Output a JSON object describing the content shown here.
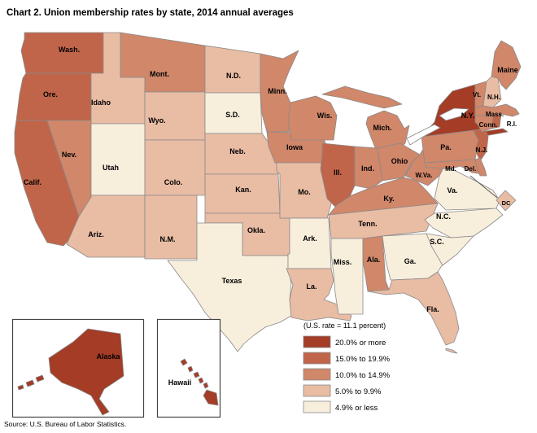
{
  "title": "Chart 2. Union membership rates by state, 2014 annual averages",
  "source": "Source: U.S. Bureau of Labor Statistics.",
  "legend": {
    "note": "(U.S. rate = 11.1 percent)",
    "classes": [
      {
        "label": "20.0% or more",
        "color": "#A43C26"
      },
      {
        "label": "15.0% to 19.9%",
        "color": "#C1654A"
      },
      {
        "label": "10.0% to 14.9%",
        "color": "#D0876A"
      },
      {
        "label": "5.0% to 9.9%",
        "color": "#E9BCA4"
      },
      {
        "label": "4.9% or less",
        "color": "#F8EEDC"
      }
    ],
    "border_color": "#8a8a8a"
  },
  "map": {
    "stroke_color": "#8a8a8a",
    "inset_border_color": "#444444",
    "states": [
      {
        "id": "wa",
        "label": "Wash.",
        "bucket": 1
      },
      {
        "id": "or",
        "label": "Ore.",
        "bucket": 1
      },
      {
        "id": "ca",
        "label": "Calif.",
        "bucket": 1
      },
      {
        "id": "id",
        "label": "Idaho",
        "bucket": 3
      },
      {
        "id": "nv",
        "label": "Nev.",
        "bucket": 2
      },
      {
        "id": "ut",
        "label": "Utah",
        "bucket": 4
      },
      {
        "id": "az",
        "label": "Ariz.",
        "bucket": 3
      },
      {
        "id": "mt",
        "label": "Mont.",
        "bucket": 2
      },
      {
        "id": "wy",
        "label": "Wyo.",
        "bucket": 3
      },
      {
        "id": "co",
        "label": "Colo.",
        "bucket": 3
      },
      {
        "id": "nm",
        "label": "N.M.",
        "bucket": 3
      },
      {
        "id": "nd",
        "label": "N.D.",
        "bucket": 3
      },
      {
        "id": "sd",
        "label": "S.D.",
        "bucket": 4
      },
      {
        "id": "ne",
        "label": "Neb.",
        "bucket": 3
      },
      {
        "id": "ks",
        "label": "Kan.",
        "bucket": 3
      },
      {
        "id": "ok",
        "label": "Okla.",
        "bucket": 3
      },
      {
        "id": "tx",
        "label": "Texas",
        "bucket": 4
      },
      {
        "id": "mn",
        "label": "Minn.",
        "bucket": 2
      },
      {
        "id": "ia",
        "label": "Iowa",
        "bucket": 2
      },
      {
        "id": "mo",
        "label": "Mo.",
        "bucket": 3
      },
      {
        "id": "ar",
        "label": "Ark.",
        "bucket": 4
      },
      {
        "id": "la",
        "label": "La.",
        "bucket": 3
      },
      {
        "id": "wi",
        "label": "Wis.",
        "bucket": 2
      },
      {
        "id": "il",
        "label": "Ill.",
        "bucket": 1
      },
      {
        "id": "mi",
        "label": "Mich.",
        "bucket": 2
      },
      {
        "id": "in",
        "label": "Ind.",
        "bucket": 2
      },
      {
        "id": "oh",
        "label": "Ohio",
        "bucket": 2
      },
      {
        "id": "ky",
        "label": "Ky.",
        "bucket": 2
      },
      {
        "id": "tn",
        "label": "Tenn.",
        "bucket": 3
      },
      {
        "id": "ms",
        "label": "Miss.",
        "bucket": 4
      },
      {
        "id": "al",
        "label": "Ala.",
        "bucket": 2
      },
      {
        "id": "ga",
        "label": "Ga.",
        "bucket": 4
      },
      {
        "id": "fl",
        "label": "Fla.",
        "bucket": 3
      },
      {
        "id": "sc",
        "label": "S.C.",
        "bucket": 4
      },
      {
        "id": "nc",
        "label": "N.C.",
        "bucket": 4
      },
      {
        "id": "va",
        "label": "Va.",
        "bucket": 4
      },
      {
        "id": "wv",
        "label": "W.Va.",
        "bucket": 2
      },
      {
        "id": "oh2",
        "label": "",
        "bucket": 2
      },
      {
        "id": "pa",
        "label": "Pa.",
        "bucket": 2
      },
      {
        "id": "ny",
        "label": "N.Y.",
        "bucket": 0
      },
      {
        "id": "nj",
        "label": "N.J.",
        "bucket": 1
      },
      {
        "id": "md",
        "label": "Md.",
        "bucket": 2
      },
      {
        "id": "de",
        "label": "Del.",
        "bucket": 2
      },
      {
        "id": "dc",
        "label": "DC",
        "bucket": 3
      },
      {
        "id": "ct",
        "label": "Conn.",
        "bucket": 2
      },
      {
        "id": "ri",
        "label": "R.I.",
        "bucket": 1
      },
      {
        "id": "ma",
        "label": "Mass.",
        "bucket": 2
      },
      {
        "id": "vt",
        "label": "Vt.",
        "bucket": 2
      },
      {
        "id": "nh",
        "label": "N.H.",
        "bucket": 3
      },
      {
        "id": "me",
        "label": "Maine",
        "bucket": 2
      },
      {
        "id": "ak",
        "label": "Alaska",
        "bucket": 0
      },
      {
        "id": "hi",
        "label": "Hawaii",
        "bucket": 0
      }
    ]
  }
}
